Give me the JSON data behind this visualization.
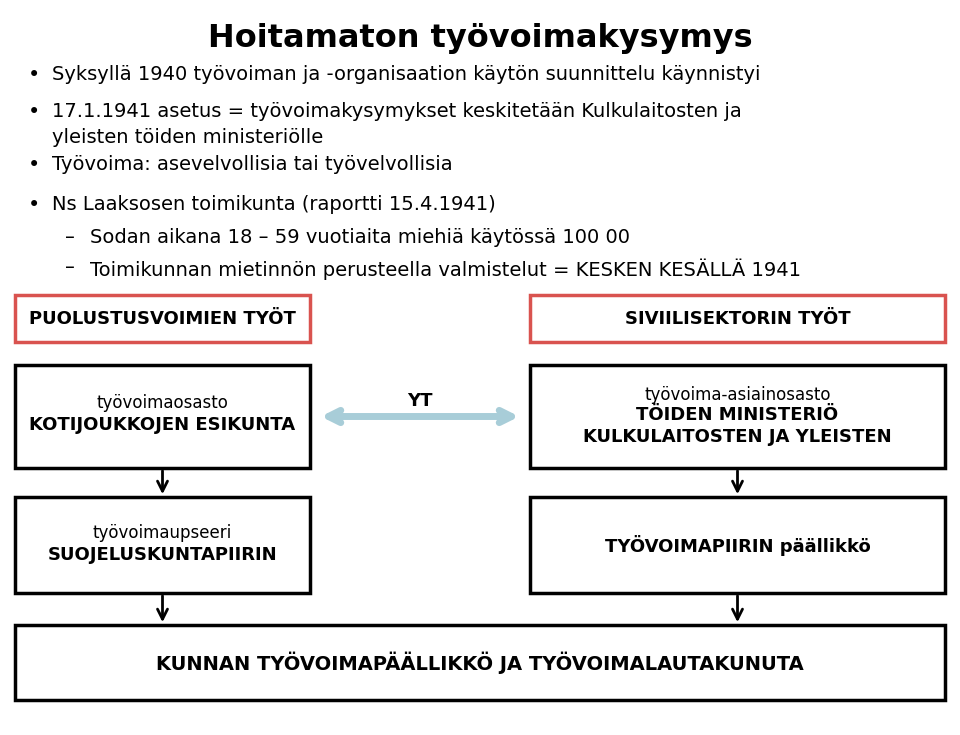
{
  "title": "Hoitamaton työvoimakysymys",
  "bullet1": "Syksyllä 1940 työvoiman ja -organisaation käytön suunnittelu käynnistyi",
  "bullet2a": "17.1.1941 asetus = työvoimakysymykset keskitetään Kulkulaitosten ja",
  "bullet2b": "yleisten töiden ministeriölle",
  "bullet3": "Työvoima: asevelvollisia tai työvelvollisia",
  "bullet4": "Ns Laaksosen toimikunta (raportti 15.4.1941)",
  "sub1": "Sodan aikana 18 – 59 vuotiaita miehiä käytössä 100 00",
  "sub2": "Toimikunnan mietinnön perusteella valmistelut = KESKEN KESÄLLÄ 1941",
  "box_puolustusvoimien": "PUOLUSTUSVOIMIEN TYÖT",
  "box_siviilisektori": "SIVIILISEKTORIN TYÖT",
  "box_kotijoukkojen_line1": "KOTIJOUKKOJEN ESIKUNTA",
  "box_kotijoukkojen_line2": "työvoimaosasto",
  "box_kulkulaitosten_line1": "KULKULAITOSTEN JA YLEISTEN",
  "box_kulkulaitosten_line2": "TÖIDEN MINISTERIÖ",
  "box_kulkulaitosten_line3": "työvoima-asiainosasto",
  "box_suojeluskunta_line1": "SUOJELUSKUNTAPIIRIN",
  "box_suojeluskunta_line2": "työvoimaupseeri",
  "box_tyovoimapiiri": "TYÖVOIMAPIIRIN päällikkö",
  "box_kunnan": "KUNNAN TYÖVOIMAPÄÄLLIKKÖ JA TYÖVOIMALAUTAKUNUTA",
  "yt_label": "YT",
  "bg_color": "#ffffff",
  "text_color": "#000000",
  "box_color_red": "#d9534f",
  "arrow_color_blue": "#a8cdd8"
}
